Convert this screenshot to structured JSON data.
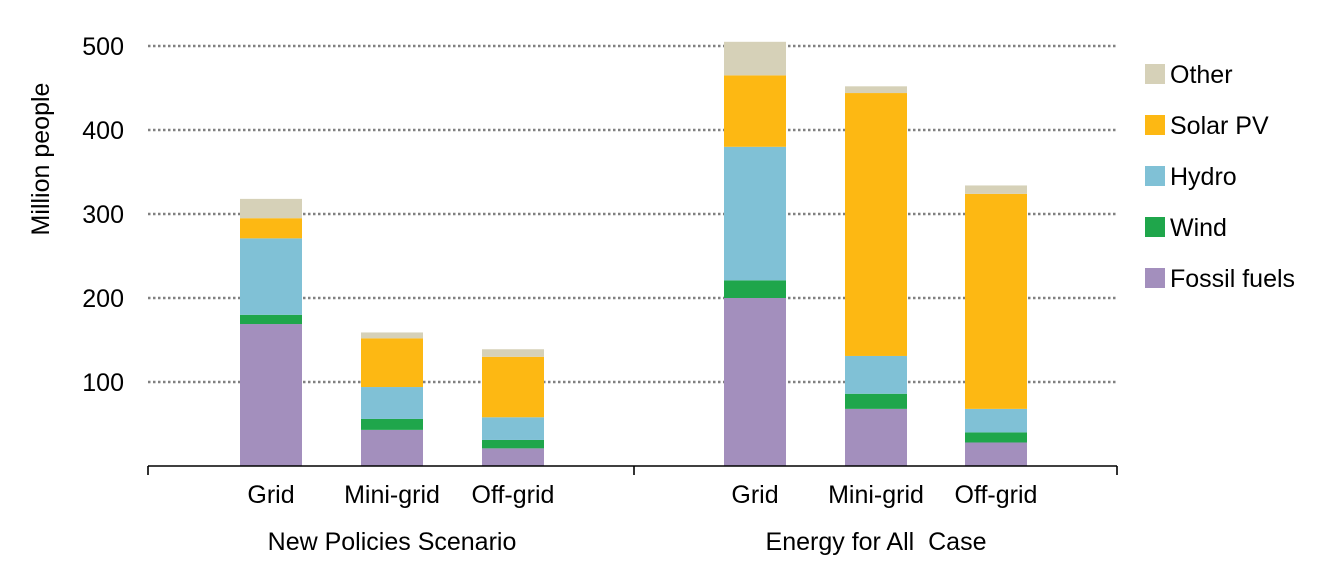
{
  "chart_data": {
    "type": "bar",
    "stacked": true,
    "ylabel": "Million people",
    "ylim": [
      0,
      500
    ],
    "yticks": [
      100,
      200,
      300,
      400,
      500
    ],
    "grid": true,
    "legend_position": "right",
    "groups": [
      {
        "label": "New Policies Scenario",
        "categories": [
          "Grid",
          "Mini-grid",
          "Off-grid"
        ]
      },
      {
        "label": "Energy for All  Case",
        "categories": [
          "Grid",
          "Mini-grid",
          "Off-grid"
        ]
      }
    ],
    "categories": [
      "Grid",
      "Mini-grid",
      "Off-grid",
      "Grid",
      "Mini-grid",
      "Off-grid"
    ],
    "series": [
      {
        "name": "Fossil fuels",
        "color": "#a38fbd",
        "values": [
          169,
          43,
          21,
          200,
          68,
          28
        ]
      },
      {
        "name": "Wind",
        "color": "#1fa64b",
        "values": [
          11,
          13,
          10,
          21,
          18,
          12
        ]
      },
      {
        "name": "Hydro",
        "color": "#80c1d6",
        "values": [
          91,
          38,
          27,
          159,
          45,
          28
        ]
      },
      {
        "name": "Solar PV",
        "color": "#fdb813",
        "values": [
          24,
          58,
          72,
          85,
          313,
          256
        ]
      },
      {
        "name": "Other",
        "color": "#d6d1b8",
        "values": [
          23,
          7,
          9,
          40,
          8,
          10
        ]
      }
    ]
  }
}
